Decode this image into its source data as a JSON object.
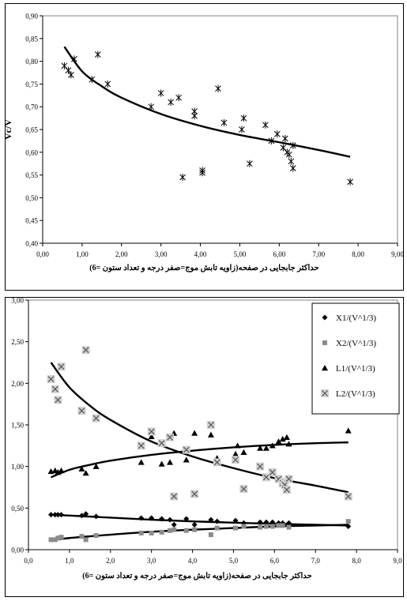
{
  "colors": {
    "line": "#000000",
    "frame": "#000000",
    "grid": "#ffffff",
    "x1": "#000000",
    "x2": "#8c8c8c",
    "l1": "#000000",
    "l2": "#9a9a9a",
    "l2_box": "#d0d0d0"
  },
  "chart_data": [
    {
      "type": "scatter",
      "title": "",
      "xlabel": "حداکثر جابجایی در صفحه(زاویه تابش موج=صفر درجه و تعداد ستون =6)",
      "ylabel": "Vc/V",
      "xlim": [
        0,
        9
      ],
      "ylim": [
        0.4,
        0.9
      ],
      "x_ticks": [
        "0,00",
        "1,00",
        "2,00",
        "3,00",
        "4,00",
        "5,00",
        "6,00",
        "7,00",
        "8,00",
        "9,00"
      ],
      "y_ticks": [
        "0,40",
        "0,45",
        "0,50",
        "0,55",
        "0,60",
        "0,65",
        "0,70",
        "0,75",
        "0,80",
        "0,85",
        "0,90"
      ],
      "grid": false,
      "legend": "none",
      "marker": "asterisk",
      "series": [
        {
          "points": [
            [
              0.55,
              0.79
            ],
            [
              0.65,
              0.78
            ],
            [
              0.72,
              0.77
            ],
            [
              0.8,
              0.805
            ],
            [
              1.25,
              0.76
            ],
            [
              1.4,
              0.815
            ],
            [
              1.65,
              0.75
            ],
            [
              2.75,
              0.7
            ],
            [
              3.0,
              0.73
            ],
            [
              3.25,
              0.71
            ],
            [
              3.45,
              0.72
            ],
            [
              3.55,
              0.545
            ],
            [
              3.85,
              0.69
            ],
            [
              3.85,
              0.68
            ],
            [
              4.05,
              0.56
            ],
            [
              4.05,
              0.555
            ],
            [
              4.45,
              0.74
            ],
            [
              4.6,
              0.665
            ],
            [
              5.05,
              0.65
            ],
            [
              5.1,
              0.675
            ],
            [
              5.25,
              0.575
            ],
            [
              5.65,
              0.66
            ],
            [
              5.8,
              0.625
            ],
            [
              5.95,
              0.64
            ],
            [
              6.1,
              0.61
            ],
            [
              6.15,
              0.63
            ],
            [
              6.2,
              0.6
            ],
            [
              6.25,
              0.595
            ],
            [
              6.3,
              0.58
            ],
            [
              6.35,
              0.565
            ],
            [
              6.35,
              0.615
            ],
            [
              7.8,
              0.535
            ]
          ]
        }
      ],
      "trendlines": [
        {
          "kind": "fit",
          "points": [
            [
              0.55,
              0.832
            ],
            [
              1,
              0.778
            ],
            [
              1.5,
              0.745
            ],
            [
              2,
              0.72
            ],
            [
              3,
              0.684
            ],
            [
              4,
              0.658
            ],
            [
              5,
              0.638
            ],
            [
              6,
              0.622
            ],
            [
              7,
              0.605
            ],
            [
              7.8,
              0.59
            ]
          ]
        }
      ]
    },
    {
      "type": "scatter",
      "title": "",
      "xlabel": "حداکثر جابجایی در صفحه(زاویه تابش موج=صفر درجه و تعداد ستون =6)",
      "ylabel": "",
      "xlim": [
        0,
        9
      ],
      "ylim": [
        0,
        3
      ],
      "x_ticks": [
        "0,0",
        "1,0",
        "2,0",
        "3,0",
        "4,0",
        "5,0",
        "6,0",
        "7,0",
        "8,0",
        "9,0"
      ],
      "y_ticks": [
        "0,00",
        "0,50",
        "1,00",
        "1,50",
        "2,00",
        "2,50",
        "3,00"
      ],
      "grid": false,
      "legend": "top-right",
      "series": [
        {
          "name": "X1/(V^1/3)",
          "marker": "diamond",
          "color": "#000000",
          "points": [
            [
              0.55,
              0.42
            ],
            [
              0.65,
              0.42
            ],
            [
              0.72,
              0.42
            ],
            [
              0.8,
              0.42
            ],
            [
              1.3,
              0.41
            ],
            [
              1.4,
              0.43
            ],
            [
              1.65,
              0.4
            ],
            [
              2.75,
              0.38
            ],
            [
              3.0,
              0.38
            ],
            [
              3.25,
              0.37
            ],
            [
              3.45,
              0.36
            ],
            [
              3.55,
              0.3
            ],
            [
              3.85,
              0.37
            ],
            [
              4.05,
              0.3
            ],
            [
              4.45,
              0.36
            ],
            [
              4.6,
              0.34
            ],
            [
              5.05,
              0.35
            ],
            [
              5.25,
              0.32
            ],
            [
              5.65,
              0.33
            ],
            [
              5.8,
              0.33
            ],
            [
              5.95,
              0.33
            ],
            [
              6.1,
              0.32
            ],
            [
              6.2,
              0.32
            ],
            [
              6.35,
              0.32
            ],
            [
              7.8,
              0.28
            ]
          ]
        },
        {
          "name": "X2/(V^1/3)",
          "marker": "square",
          "color": "#8c8c8c",
          "points": [
            [
              0.55,
              0.12
            ],
            [
              0.65,
              0.12
            ],
            [
              0.72,
              0.14
            ],
            [
              0.8,
              0.15
            ],
            [
              1.3,
              0.16
            ],
            [
              1.4,
              0.12
            ],
            [
              1.65,
              0.17
            ],
            [
              2.75,
              0.2
            ],
            [
              3.0,
              0.2
            ],
            [
              3.25,
              0.21
            ],
            [
              3.45,
              0.23
            ],
            [
              3.55,
              0.24
            ],
            [
              3.85,
              0.23
            ],
            [
              4.05,
              0.24
            ],
            [
              4.45,
              0.18
            ],
            [
              4.6,
              0.26
            ],
            [
              5.05,
              0.26
            ],
            [
              5.25,
              0.28
            ],
            [
              5.65,
              0.27
            ],
            [
              5.8,
              0.28
            ],
            [
              5.95,
              0.28
            ],
            [
              6.1,
              0.29
            ],
            [
              6.2,
              0.29
            ],
            [
              6.35,
              0.27
            ],
            [
              7.8,
              0.34
            ]
          ]
        },
        {
          "name": "L1/(V^1/3)",
          "marker": "triangle",
          "color": "#000000",
          "points": [
            [
              0.55,
              0.94
            ],
            [
              0.65,
              0.95
            ],
            [
              0.72,
              0.93
            ],
            [
              0.8,
              0.95
            ],
            [
              1.3,
              0.97
            ],
            [
              1.4,
              0.92
            ],
            [
              1.65,
              1.0
            ],
            [
              2.75,
              1.05
            ],
            [
              3.0,
              1.36
            ],
            [
              3.25,
              1.03
            ],
            [
              3.45,
              1.05
            ],
            [
              3.55,
              1.4
            ],
            [
              3.85,
              1.08
            ],
            [
              4.05,
              1.4
            ],
            [
              4.45,
              1.38
            ],
            [
              4.6,
              1.1
            ],
            [
              5.05,
              1.15
            ],
            [
              5.1,
              1.25
            ],
            [
              5.25,
              1.17
            ],
            [
              5.65,
              1.22
            ],
            [
              5.8,
              1.22
            ],
            [
              5.95,
              1.25
            ],
            [
              6.1,
              1.3
            ],
            [
              6.2,
              1.33
            ],
            [
              6.35,
              1.27
            ],
            [
              6.3,
              1.35
            ],
            [
              7.8,
              1.43
            ]
          ]
        },
        {
          "name": "L2/(V^1/3)",
          "marker": "boxed-x",
          "color": "#9a9a9a",
          "points": [
            [
              0.55,
              2.05
            ],
            [
              0.65,
              1.93
            ],
            [
              0.72,
              1.8
            ],
            [
              0.8,
              2.2
            ],
            [
              1.3,
              1.67
            ],
            [
              1.4,
              2.4
            ],
            [
              1.65,
              1.58
            ],
            [
              2.75,
              1.25
            ],
            [
              3.0,
              1.42
            ],
            [
              3.25,
              1.28
            ],
            [
              3.45,
              1.35
            ],
            [
              3.55,
              0.64
            ],
            [
              3.85,
              1.2
            ],
            [
              4.05,
              0.67
            ],
            [
              4.45,
              1.5
            ],
            [
              4.6,
              1.05
            ],
            [
              5.05,
              1.08
            ],
            [
              5.25,
              0.73
            ],
            [
              5.65,
              1.0
            ],
            [
              5.8,
              0.87
            ],
            [
              5.95,
              0.93
            ],
            [
              6.1,
              0.85
            ],
            [
              6.2,
              0.8
            ],
            [
              6.25,
              0.78
            ],
            [
              6.3,
              0.72
            ],
            [
              6.35,
              0.85
            ],
            [
              7.8,
              0.64
            ]
          ]
        }
      ],
      "trendlines": [
        {
          "kind": "fit",
          "points": [
            [
              0.55,
              2.25
            ],
            [
              1,
              1.95
            ],
            [
              1.5,
              1.73
            ],
            [
              2,
              1.56
            ],
            [
              3,
              1.3
            ],
            [
              4,
              1.12
            ],
            [
              5,
              0.98
            ],
            [
              6,
              0.86
            ],
            [
              7,
              0.77
            ],
            [
              7.8,
              0.69
            ]
          ]
        },
        {
          "kind": "fit",
          "points": [
            [
              0.55,
              0.87
            ],
            [
              1,
              0.96
            ],
            [
              1.5,
              1.02
            ],
            [
              2,
              1.07
            ],
            [
              3,
              1.14
            ],
            [
              4,
              1.19
            ],
            [
              5,
              1.23
            ],
            [
              6,
              1.26
            ],
            [
              7,
              1.28
            ],
            [
              7.8,
              1.29
            ]
          ]
        },
        {
          "kind": "fit",
          "points": [
            [
              0.55,
              0.42
            ],
            [
              1,
              0.41
            ],
            [
              2,
              0.385
            ],
            [
              3,
              0.36
            ],
            [
              4,
              0.34
            ],
            [
              5,
              0.325
            ],
            [
              6,
              0.31
            ],
            [
              7,
              0.3
            ],
            [
              7.8,
              0.29
            ]
          ]
        },
        {
          "kind": "fit",
          "points": [
            [
              0.55,
              0.11
            ],
            [
              1,
              0.14
            ],
            [
              2,
              0.18
            ],
            [
              3,
              0.215
            ],
            [
              4,
              0.24
            ],
            [
              5,
              0.26
            ],
            [
              6,
              0.28
            ],
            [
              7,
              0.29
            ],
            [
              7.8,
              0.3
            ]
          ]
        }
      ]
    }
  ]
}
